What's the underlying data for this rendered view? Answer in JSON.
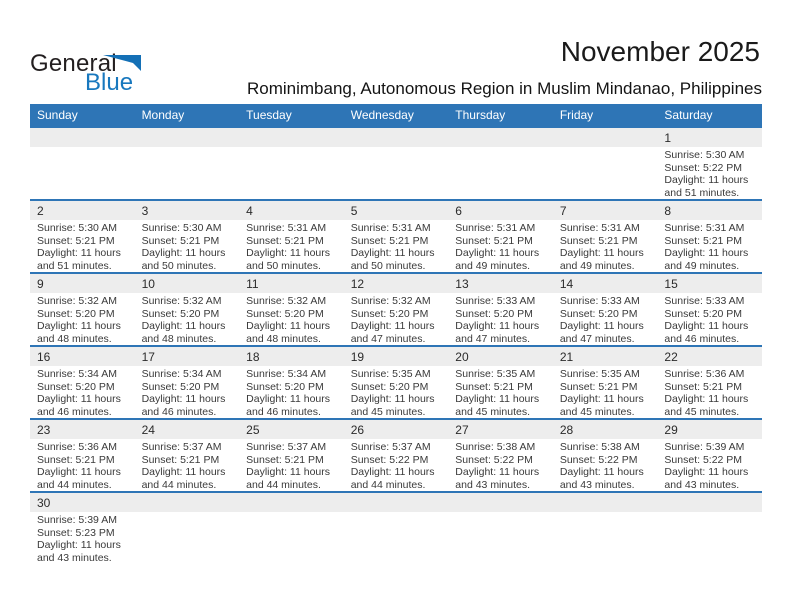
{
  "logo": {
    "general": "General",
    "blue": "Blue"
  },
  "header": {
    "title": "November 2025",
    "subtitle": "Rominimbang, Autonomous Region in Muslim Mindanao, Philippines"
  },
  "colors": {
    "accent": "#2e75b6",
    "band_bg": "#ededed",
    "logo_blue": "#1878be",
    "header_text": "#ffffff"
  },
  "calendar": {
    "weekdays": [
      "Sunday",
      "Monday",
      "Tuesday",
      "Wednesday",
      "Thursday",
      "Friday",
      "Saturday"
    ],
    "labels": {
      "sunrise": "Sunrise:",
      "sunset": "Sunset:",
      "daylight": "Daylight:"
    },
    "weeks": [
      [
        null,
        null,
        null,
        null,
        null,
        null,
        {
          "n": "1",
          "rise": "5:30 AM",
          "set": "5:22 PM",
          "dl": [
            "11 hours",
            "and 51 minutes."
          ]
        }
      ],
      [
        {
          "n": "2",
          "rise": "5:30 AM",
          "set": "5:21 PM",
          "dl": [
            "11 hours",
            "and 51 minutes."
          ]
        },
        {
          "n": "3",
          "rise": "5:30 AM",
          "set": "5:21 PM",
          "dl": [
            "11 hours",
            "and 50 minutes."
          ]
        },
        {
          "n": "4",
          "rise": "5:31 AM",
          "set": "5:21 PM",
          "dl": [
            "11 hours",
            "and 50 minutes."
          ]
        },
        {
          "n": "5",
          "rise": "5:31 AM",
          "set": "5:21 PM",
          "dl": [
            "11 hours",
            "and 50 minutes."
          ]
        },
        {
          "n": "6",
          "rise": "5:31 AM",
          "set": "5:21 PM",
          "dl": [
            "11 hours",
            "and 49 minutes."
          ]
        },
        {
          "n": "7",
          "rise": "5:31 AM",
          "set": "5:21 PM",
          "dl": [
            "11 hours",
            "and 49 minutes."
          ]
        },
        {
          "n": "8",
          "rise": "5:31 AM",
          "set": "5:21 PM",
          "dl": [
            "11 hours",
            "and 49 minutes."
          ]
        }
      ],
      [
        {
          "n": "9",
          "rise": "5:32 AM",
          "set": "5:20 PM",
          "dl": [
            "11 hours",
            "and 48 minutes."
          ]
        },
        {
          "n": "10",
          "rise": "5:32 AM",
          "set": "5:20 PM",
          "dl": [
            "11 hours",
            "and 48 minutes."
          ]
        },
        {
          "n": "11",
          "rise": "5:32 AM",
          "set": "5:20 PM",
          "dl": [
            "11 hours",
            "and 48 minutes."
          ]
        },
        {
          "n": "12",
          "rise": "5:32 AM",
          "set": "5:20 PM",
          "dl": [
            "11 hours",
            "and 47 minutes."
          ]
        },
        {
          "n": "13",
          "rise": "5:33 AM",
          "set": "5:20 PM",
          "dl": [
            "11 hours",
            "and 47 minutes."
          ]
        },
        {
          "n": "14",
          "rise": "5:33 AM",
          "set": "5:20 PM",
          "dl": [
            "11 hours",
            "and 47 minutes."
          ]
        },
        {
          "n": "15",
          "rise": "5:33 AM",
          "set": "5:20 PM",
          "dl": [
            "11 hours",
            "and 46 minutes."
          ]
        }
      ],
      [
        {
          "n": "16",
          "rise": "5:34 AM",
          "set": "5:20 PM",
          "dl": [
            "11 hours",
            "and 46 minutes."
          ]
        },
        {
          "n": "17",
          "rise": "5:34 AM",
          "set": "5:20 PM",
          "dl": [
            "11 hours",
            "and 46 minutes."
          ]
        },
        {
          "n": "18",
          "rise": "5:34 AM",
          "set": "5:20 PM",
          "dl": [
            "11 hours",
            "and 46 minutes."
          ]
        },
        {
          "n": "19",
          "rise": "5:35 AM",
          "set": "5:20 PM",
          "dl": [
            "11 hours",
            "and 45 minutes."
          ]
        },
        {
          "n": "20",
          "rise": "5:35 AM",
          "set": "5:21 PM",
          "dl": [
            "11 hours",
            "and 45 minutes."
          ]
        },
        {
          "n": "21",
          "rise": "5:35 AM",
          "set": "5:21 PM",
          "dl": [
            "11 hours",
            "and 45 minutes."
          ]
        },
        {
          "n": "22",
          "rise": "5:36 AM",
          "set": "5:21 PM",
          "dl": [
            "11 hours",
            "and 45 minutes."
          ]
        }
      ],
      [
        {
          "n": "23",
          "rise": "5:36 AM",
          "set": "5:21 PM",
          "dl": [
            "11 hours",
            "and 44 minutes."
          ]
        },
        {
          "n": "24",
          "rise": "5:37 AM",
          "set": "5:21 PM",
          "dl": [
            "11 hours",
            "and 44 minutes."
          ]
        },
        {
          "n": "25",
          "rise": "5:37 AM",
          "set": "5:21 PM",
          "dl": [
            "11 hours",
            "and 44 minutes."
          ]
        },
        {
          "n": "26",
          "rise": "5:37 AM",
          "set": "5:22 PM",
          "dl": [
            "11 hours",
            "and 44 minutes."
          ]
        },
        {
          "n": "27",
          "rise": "5:38 AM",
          "set": "5:22 PM",
          "dl": [
            "11 hours",
            "and 43 minutes."
          ]
        },
        {
          "n": "28",
          "rise": "5:38 AM",
          "set": "5:22 PM",
          "dl": [
            "11 hours",
            "and 43 minutes."
          ]
        },
        {
          "n": "29",
          "rise": "5:39 AM",
          "set": "5:22 PM",
          "dl": [
            "11 hours",
            "and 43 minutes."
          ]
        }
      ],
      [
        {
          "n": "30",
          "rise": "5:39 AM",
          "set": "5:23 PM",
          "dl": [
            "11 hours",
            "and 43 minutes."
          ]
        },
        null,
        null,
        null,
        null,
        null,
        null
      ]
    ]
  }
}
